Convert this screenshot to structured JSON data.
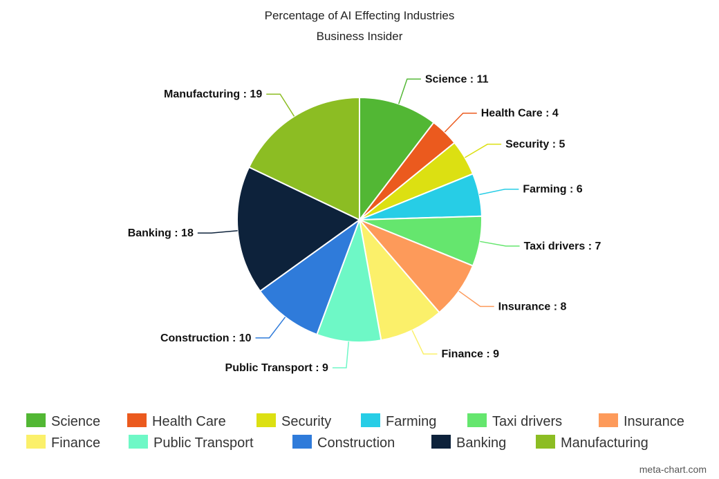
{
  "chart_data": {
    "type": "pie",
    "title": "Percentage of AI Effecting Industries",
    "subtitle": "Business Insider",
    "slices": [
      {
        "label": "Science",
        "display_label": "Science : 11",
        "value": 11,
        "color": "#52b734"
      },
      {
        "label": "Health Care",
        "display_label": "Health Care : 4",
        "value": 4,
        "color": "#eb5a1e"
      },
      {
        "label": "Security",
        "display_label": "Security : 5",
        "value": 5,
        "color": "#dce012"
      },
      {
        "label": "Farming",
        "display_label": "Farming : 6",
        "value": 6,
        "color": "#27cde6"
      },
      {
        "label": "Taxi drivers",
        "display_label": "Taxi drivers : 7",
        "value": 7,
        "color": "#65e66e"
      },
      {
        "label": "Insurance",
        "display_label": "Insurance : 8",
        "value": 8,
        "color": "#fd9a5a"
      },
      {
        "label": "Finance",
        "display_label": "Finance : 9",
        "value": 9,
        "color": "#fbf06a"
      },
      {
        "label": "Public Transport",
        "display_label": "Public Transport : 9",
        "value": 9,
        "color": "#6ef8c6"
      },
      {
        "label": "Construction",
        "display_label": "Construction : 10",
        "value": 10,
        "color": "#2f7bda"
      },
      {
        "label": "Banking",
        "display_label": "Banking : 18",
        "value": 18,
        "color": "#0d223b"
      },
      {
        "label": "Manufacturing",
        "display_label": "Manufacturing : 19",
        "value": 19,
        "color": "#8cbd23"
      }
    ],
    "legend_position": "bottom"
  },
  "credit": "meta-chart.com"
}
